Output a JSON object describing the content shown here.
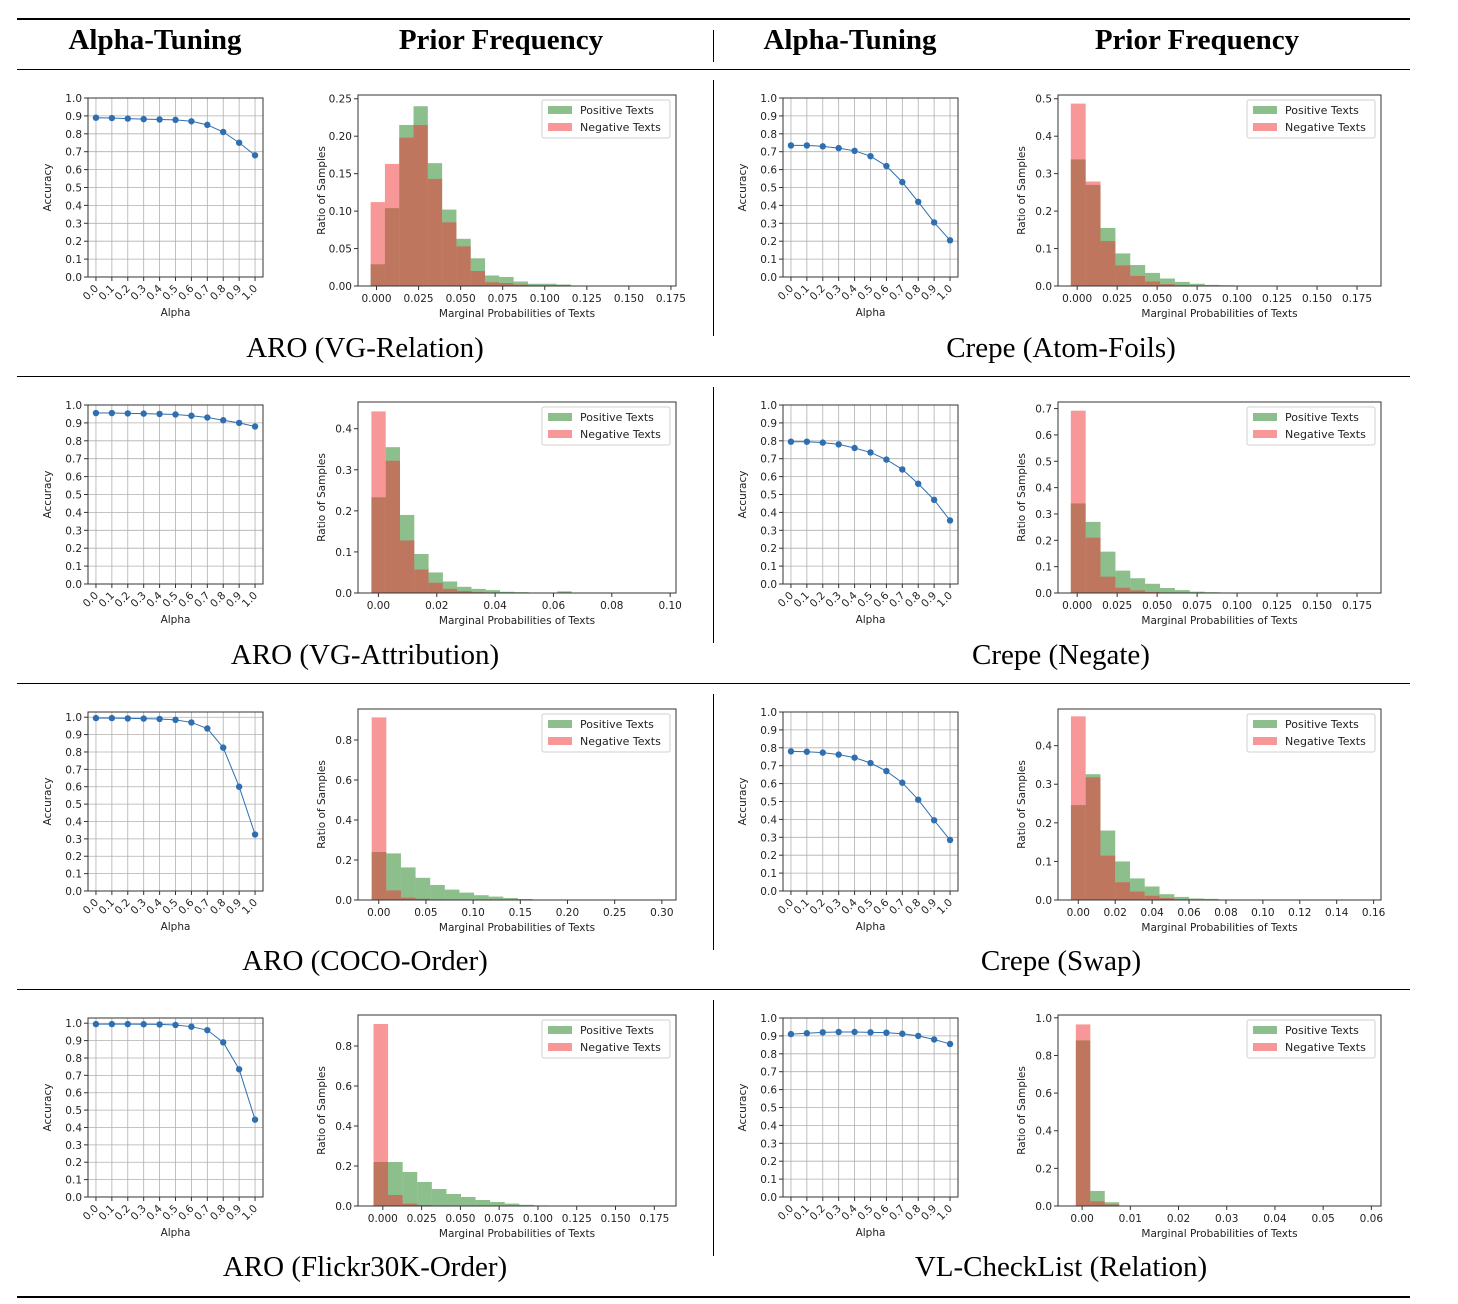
{
  "headers": [
    "Alpha-Tuning",
    "Prior Frequency",
    "Alpha-Tuning",
    "Prior Frequency"
  ],
  "captions": [
    "ARO (VG-Relation)",
    "Crepe (Atom-Foils)",
    "ARO (VG-Attribution)",
    "Crepe (Negate)",
    "ARO (COCO-Order)",
    "Crepe (Swap)",
    "ARO (Flickr30K-Order)",
    "VL-CheckList (Relation)"
  ],
  "colors": {
    "line": "#2f6fb0",
    "positive": "#2e8b2e",
    "negative": "#f03030",
    "grid": "#b0b0b0"
  },
  "chart_data": [
    {
      "type": "line",
      "panel": "ARO (VG-Relation)",
      "xlabel": "Alpha",
      "ylabel": "Accuracy",
      "xticks": [
        "0.0",
        "0.1",
        "0.2",
        "0.3",
        "0.4",
        "0.5",
        "0.6",
        "0.7",
        "0.8",
        "0.9",
        "1.0"
      ],
      "yticks": [
        "0.0",
        "0.1",
        "0.2",
        "0.3",
        "0.4",
        "0.5",
        "0.6",
        "0.7",
        "0.8",
        "0.9",
        "1.0"
      ],
      "xlim": [
        -0.05,
        1.05
      ],
      "ylim": [
        0,
        1.0
      ],
      "grid": true,
      "x": [
        0.0,
        0.1,
        0.2,
        0.3,
        0.4,
        0.5,
        0.6,
        0.7,
        0.8,
        0.9,
        1.0
      ],
      "y": [
        0.89,
        0.888,
        0.885,
        0.882,
        0.88,
        0.878,
        0.87,
        0.85,
        0.81,
        0.75,
        0.68
      ]
    },
    {
      "type": "histogram",
      "panel": "ARO (VG-Relation)",
      "xlabel": "Marginal Probabilities of Texts",
      "ylabel": "Ratio of Samples",
      "xticks": [
        "0.000",
        "0.025",
        "0.050",
        "0.075",
        "0.100",
        "0.125",
        "0.150",
        "0.175"
      ],
      "yticks": [
        "0.00",
        "0.05",
        "0.10",
        "0.15",
        "0.20",
        "0.25"
      ],
      "xlim": [
        -0.011,
        0.178
      ],
      "ylim": [
        0,
        0.255
      ],
      "legend": "top-right",
      "bin_start": -0.0035,
      "bin_width": 0.0085,
      "series": [
        {
          "name": "Positive Texts",
          "values": [
            0.029,
            0.104,
            0.215,
            0.24,
            0.164,
            0.102,
            0.063,
            0.037,
            0.014,
            0.012,
            0.006,
            0.003,
            0.003,
            0.002
          ]
        },
        {
          "name": "Negative Texts",
          "values": [
            0.112,
            0.163,
            0.198,
            0.215,
            0.143,
            0.085,
            0.053,
            0.02,
            0.005,
            0.004,
            0.002,
            0.001,
            0.001,
            0.001
          ]
        }
      ]
    },
    {
      "type": "line",
      "panel": "Crepe (Atom-Foils)",
      "xlabel": "Alpha",
      "ylabel": "Accuracy",
      "xticks": [
        "0.0",
        "0.1",
        "0.2",
        "0.3",
        "0.4",
        "0.5",
        "0.6",
        "0.7",
        "0.8",
        "0.9",
        "1.0"
      ],
      "yticks": [
        "0.0",
        "0.1",
        "0.2",
        "0.3",
        "0.4",
        "0.5",
        "0.6",
        "0.7",
        "0.8",
        "0.9",
        "1.0"
      ],
      "xlim": [
        -0.05,
        1.05
      ],
      "ylim": [
        0,
        1.0
      ],
      "grid": true,
      "x": [
        0.0,
        0.1,
        0.2,
        0.3,
        0.4,
        0.5,
        0.6,
        0.7,
        0.8,
        0.9,
        1.0
      ],
      "y": [
        0.735,
        0.735,
        0.73,
        0.72,
        0.705,
        0.675,
        0.62,
        0.53,
        0.42,
        0.305,
        0.205
      ]
    },
    {
      "type": "histogram",
      "panel": "Crepe (Atom-Foils)",
      "xlabel": "Marginal Probabilities of Texts",
      "ylabel": "Ratio of Samples",
      "xticks": [
        "0.000",
        "0.025",
        "0.050",
        "0.075",
        "0.100",
        "0.125",
        "0.150",
        "0.175"
      ],
      "yticks": [
        "0.0",
        "0.1",
        "0.2",
        "0.3",
        "0.4",
        "0.5"
      ],
      "xlim": [
        -0.012,
        0.19
      ],
      "ylim": [
        0,
        0.51
      ],
      "legend": "top-right",
      "bin_start": -0.004,
      "bin_width": 0.0093,
      "series": [
        {
          "name": "Positive Texts",
          "values": [
            0.338,
            0.27,
            0.155,
            0.087,
            0.056,
            0.035,
            0.02,
            0.011,
            0.006,
            0.003,
            0.002,
            0.001
          ]
        },
        {
          "name": "Negative Texts",
          "values": [
            0.487,
            0.279,
            0.12,
            0.055,
            0.027,
            0.012,
            0.005,
            0.002,
            0.001
          ]
        }
      ]
    },
    {
      "type": "line",
      "panel": "ARO (VG-Attribution)",
      "xlabel": "Alpha",
      "ylabel": "Accuracy",
      "xticks": [
        "0.0",
        "0.1",
        "0.2",
        "0.3",
        "0.4",
        "0.5",
        "0.6",
        "0.7",
        "0.8",
        "0.9",
        "1.0"
      ],
      "yticks": [
        "0.0",
        "0.1",
        "0.2",
        "0.3",
        "0.4",
        "0.5",
        "0.6",
        "0.7",
        "0.8",
        "0.9",
        "1.0"
      ],
      "xlim": [
        -0.05,
        1.05
      ],
      "ylim": [
        0,
        1.0
      ],
      "grid": true,
      "x": [
        0.0,
        0.1,
        0.2,
        0.3,
        0.4,
        0.5,
        0.6,
        0.7,
        0.8,
        0.9,
        1.0
      ],
      "y": [
        0.955,
        0.955,
        0.953,
        0.952,
        0.95,
        0.947,
        0.94,
        0.93,
        0.915,
        0.9,
        0.88
      ]
    },
    {
      "type": "histogram",
      "panel": "ARO (VG-Attribution)",
      "xlabel": "Marginal Probabilities of Texts",
      "ylabel": "Ratio of Samples",
      "xticks": [
        "0.00",
        "0.02",
        "0.04",
        "0.06",
        "0.08",
        "0.10"
      ],
      "yticks": [
        "0.0",
        "0.1",
        "0.2",
        "0.3",
        "0.4"
      ],
      "xlim": [
        -0.007,
        0.102
      ],
      "ylim": [
        0,
        0.465
      ],
      "legend": "top-right",
      "bin_start": -0.0024,
      "bin_width": 0.0049,
      "series": [
        {
          "name": "Positive Texts",
          "values": [
            0.233,
            0.355,
            0.19,
            0.095,
            0.05,
            0.028,
            0.015,
            0.01,
            0.007,
            0.003,
            0.002,
            0.001,
            0.001,
            0.004
          ]
        },
        {
          "name": "Negative Texts",
          "values": [
            0.442,
            0.322,
            0.128,
            0.057,
            0.025,
            0.01,
            0.005,
            0.002,
            0.001
          ]
        }
      ]
    },
    {
      "type": "line",
      "panel": "Crepe (Negate)",
      "xlabel": "Alpha",
      "ylabel": "Accuracy",
      "xticks": [
        "0.0",
        "0.1",
        "0.2",
        "0.3",
        "0.4",
        "0.5",
        "0.6",
        "0.7",
        "0.8",
        "0.9",
        "1.0"
      ],
      "yticks": [
        "0.0",
        "0.1",
        "0.2",
        "0.3",
        "0.4",
        "0.5",
        "0.6",
        "0.7",
        "0.8",
        "0.9",
        "1.0"
      ],
      "xlim": [
        -0.05,
        1.05
      ],
      "ylim": [
        0,
        1.0
      ],
      "grid": true,
      "x": [
        0.0,
        0.1,
        0.2,
        0.3,
        0.4,
        0.5,
        0.6,
        0.7,
        0.8,
        0.9,
        1.0
      ],
      "y": [
        0.795,
        0.795,
        0.79,
        0.78,
        0.76,
        0.735,
        0.695,
        0.64,
        0.56,
        0.47,
        0.355
      ]
    },
    {
      "type": "histogram",
      "panel": "Crepe (Negate)",
      "xlabel": "Marginal Probabilities of Texts",
      "ylabel": "Ratio of Samples",
      "xticks": [
        "0.000",
        "0.025",
        "0.050",
        "0.075",
        "0.100",
        "0.125",
        "0.150",
        "0.175"
      ],
      "yticks": [
        "0.0",
        "0.1",
        "0.2",
        "0.3",
        "0.4",
        "0.5",
        "0.6",
        "0.7"
      ],
      "xlim": [
        -0.012,
        0.19
      ],
      "ylim": [
        0,
        0.725
      ],
      "legend": "top-right",
      "bin_start": -0.004,
      "bin_width": 0.0093,
      "series": [
        {
          "name": "Positive Texts",
          "values": [
            0.34,
            0.27,
            0.157,
            0.085,
            0.056,
            0.035,
            0.019,
            0.011,
            0.005,
            0.003,
            0.002
          ]
        },
        {
          "name": "Negative Texts",
          "values": [
            0.692,
            0.21,
            0.062,
            0.02,
            0.01,
            0.004,
            0.002
          ]
        }
      ]
    },
    {
      "type": "line",
      "panel": "ARO (COCO-Order)",
      "xlabel": "Alpha",
      "ylabel": "Accuracy",
      "xticks": [
        "0.0",
        "0.1",
        "0.2",
        "0.3",
        "0.4",
        "0.5",
        "0.6",
        "0.7",
        "0.8",
        "0.9",
        "1.0"
      ],
      "yticks": [
        "0.0",
        "0.1",
        "0.2",
        "0.3",
        "0.4",
        "0.5",
        "0.6",
        "0.7",
        "0.8",
        "0.9",
        "1.0"
      ],
      "xlim": [
        -0.05,
        1.05
      ],
      "ylim": [
        0,
        1.03
      ],
      "grid": true,
      "x": [
        0.0,
        0.1,
        0.2,
        0.3,
        0.4,
        0.5,
        0.6,
        0.7,
        0.8,
        0.9,
        1.0
      ],
      "y": [
        0.995,
        0.995,
        0.993,
        0.992,
        0.99,
        0.985,
        0.97,
        0.935,
        0.825,
        0.6,
        0.325
      ]
    },
    {
      "type": "histogram",
      "panel": "ARO (COCO-Order)",
      "xlabel": "Marginal Probabilities of Texts",
      "ylabel": "Ratio of Samples",
      "xticks": [
        "0.00",
        "0.05",
        "0.10",
        "0.15",
        "0.20",
        "0.25",
        "0.30"
      ],
      "yticks": [
        "0.0",
        "0.2",
        "0.4",
        "0.6",
        "0.8"
      ],
      "xlim": [
        -0.022,
        0.315
      ],
      "ylim": [
        0,
        0.955
      ],
      "legend": "top-right",
      "bin_start": -0.0075,
      "bin_width": 0.0155,
      "series": [
        {
          "name": "Positive Texts",
          "values": [
            0.24,
            0.233,
            0.163,
            0.111,
            0.075,
            0.052,
            0.037,
            0.024,
            0.017,
            0.01,
            0.005,
            0.002
          ]
        },
        {
          "name": "Negative Texts",
          "values": [
            0.913,
            0.048,
            0.012,
            0.006,
            0.003,
            0.001
          ]
        }
      ]
    },
    {
      "type": "line",
      "panel": "Crepe (Swap)",
      "xlabel": "Alpha",
      "ylabel": "Accuracy",
      "xticks": [
        "0.0",
        "0.1",
        "0.2",
        "0.3",
        "0.4",
        "0.5",
        "0.6",
        "0.7",
        "0.8",
        "0.9",
        "1.0"
      ],
      "yticks": [
        "0.0",
        "0.1",
        "0.2",
        "0.3",
        "0.4",
        "0.5",
        "0.6",
        "0.7",
        "0.8",
        "0.9",
        "1.0"
      ],
      "xlim": [
        -0.05,
        1.05
      ],
      "ylim": [
        0,
        1.0
      ],
      "grid": true,
      "x": [
        0.0,
        0.1,
        0.2,
        0.3,
        0.4,
        0.5,
        0.6,
        0.7,
        0.8,
        0.9,
        1.0
      ],
      "y": [
        0.78,
        0.778,
        0.773,
        0.762,
        0.745,
        0.715,
        0.67,
        0.605,
        0.51,
        0.395,
        0.285
      ]
    },
    {
      "type": "histogram",
      "panel": "Crepe (Swap)",
      "xlabel": "Marginal Probabilities of Texts",
      "ylabel": "Ratio of Samples",
      "xticks": [
        "0.00",
        "0.02",
        "0.04",
        "0.06",
        "0.08",
        "0.10",
        "0.12",
        "0.14",
        "0.16"
      ],
      "yticks": [
        "0.0",
        "0.1",
        "0.2",
        "0.3",
        "0.4"
      ],
      "xlim": [
        -0.011,
        0.164
      ],
      "ylim": [
        0,
        0.495
      ],
      "legend": "top-right",
      "bin_start": -0.004,
      "bin_width": 0.008,
      "series": [
        {
          "name": "Positive Texts",
          "values": [
            0.246,
            0.326,
            0.18,
            0.1,
            0.056,
            0.035,
            0.015,
            0.008,
            0.004,
            0.003,
            0.001
          ]
        },
        {
          "name": "Negative Texts",
          "values": [
            0.476,
            0.318,
            0.115,
            0.046,
            0.022,
            0.011,
            0.005,
            0.002,
            0.001
          ]
        }
      ]
    },
    {
      "type": "line",
      "panel": "ARO (Flickr30K-Order)",
      "xlabel": "Alpha",
      "ylabel": "Accuracy",
      "xticks": [
        "0.0",
        "0.1",
        "0.2",
        "0.3",
        "0.4",
        "0.5",
        "0.6",
        "0.7",
        "0.8",
        "0.9",
        "1.0"
      ],
      "yticks": [
        "0.0",
        "0.1",
        "0.2",
        "0.3",
        "0.4",
        "0.5",
        "0.6",
        "0.7",
        "0.8",
        "0.9",
        "1.0"
      ],
      "xlim": [
        -0.05,
        1.05
      ],
      "ylim": [
        0,
        1.03
      ],
      "grid": true,
      "x": [
        0.0,
        0.1,
        0.2,
        0.3,
        0.4,
        0.5,
        0.6,
        0.7,
        0.8,
        0.9,
        1.0
      ],
      "y": [
        0.995,
        0.995,
        0.995,
        0.994,
        0.993,
        0.99,
        0.98,
        0.96,
        0.89,
        0.735,
        0.445
      ]
    },
    {
      "type": "histogram",
      "panel": "ARO (Flickr30K-Order)",
      "xlabel": "Marginal Probabilities of Texts",
      "ylabel": "Ratio of Samples",
      "xticks": [
        "0.000",
        "0.025",
        "0.050",
        "0.075",
        "0.100",
        "0.125",
        "0.150",
        "0.175"
      ],
      "yticks": [
        "0.0",
        "0.2",
        "0.4",
        "0.6",
        "0.8"
      ],
      "xlim": [
        -0.016,
        0.189
      ],
      "ylim": [
        0,
        0.955
      ],
      "legend": "top-right",
      "bin_start": -0.006,
      "bin_width": 0.0094,
      "series": [
        {
          "name": "Positive Texts",
          "values": [
            0.22,
            0.22,
            0.17,
            0.12,
            0.085,
            0.06,
            0.045,
            0.03,
            0.02,
            0.012,
            0.006,
            0.003
          ]
        },
        {
          "name": "Negative Texts",
          "values": [
            0.91,
            0.055,
            0.012,
            0.005,
            0.002
          ]
        }
      ]
    },
    {
      "type": "line",
      "panel": "VL-CheckList (Relation)",
      "xlabel": "Alpha",
      "ylabel": "Accuracy",
      "xticks": [
        "0.0",
        "0.1",
        "0.2",
        "0.3",
        "0.4",
        "0.5",
        "0.6",
        "0.7",
        "0.8",
        "0.9",
        "1.0"
      ],
      "yticks": [
        "0.0",
        "0.1",
        "0.2",
        "0.3",
        "0.4",
        "0.5",
        "0.6",
        "0.7",
        "0.8",
        "0.9",
        "1.0"
      ],
      "xlim": [
        -0.05,
        1.05
      ],
      "ylim": [
        0,
        1.0
      ],
      "grid": true,
      "x": [
        0.0,
        0.1,
        0.2,
        0.3,
        0.4,
        0.5,
        0.6,
        0.7,
        0.8,
        0.9,
        1.0
      ],
      "y": [
        0.91,
        0.915,
        0.92,
        0.922,
        0.922,
        0.92,
        0.918,
        0.912,
        0.9,
        0.88,
        0.855
      ]
    },
    {
      "type": "histogram",
      "panel": "VL-CheckList (Relation)",
      "xlabel": "Marginal Probabilities of Texts",
      "ylabel": "Ratio of Samples",
      "xticks": [
        "0.00",
        "0.01",
        "0.02",
        "0.03",
        "0.04",
        "0.05",
        "0.06"
      ],
      "yticks": [
        "0.0",
        "0.2",
        "0.4",
        "0.6",
        "0.8",
        "1.0"
      ],
      "xlim": [
        -0.005,
        0.062
      ],
      "ylim": [
        0,
        1.015
      ],
      "legend": "top-right",
      "bin_start": -0.0013,
      "bin_width": 0.003,
      "series": [
        {
          "name": "Positive Texts",
          "values": [
            0.88,
            0.08,
            0.02,
            0.002
          ]
        },
        {
          "name": "Negative Texts",
          "values": [
            0.965,
            0.025,
            0.008
          ]
        }
      ]
    }
  ]
}
